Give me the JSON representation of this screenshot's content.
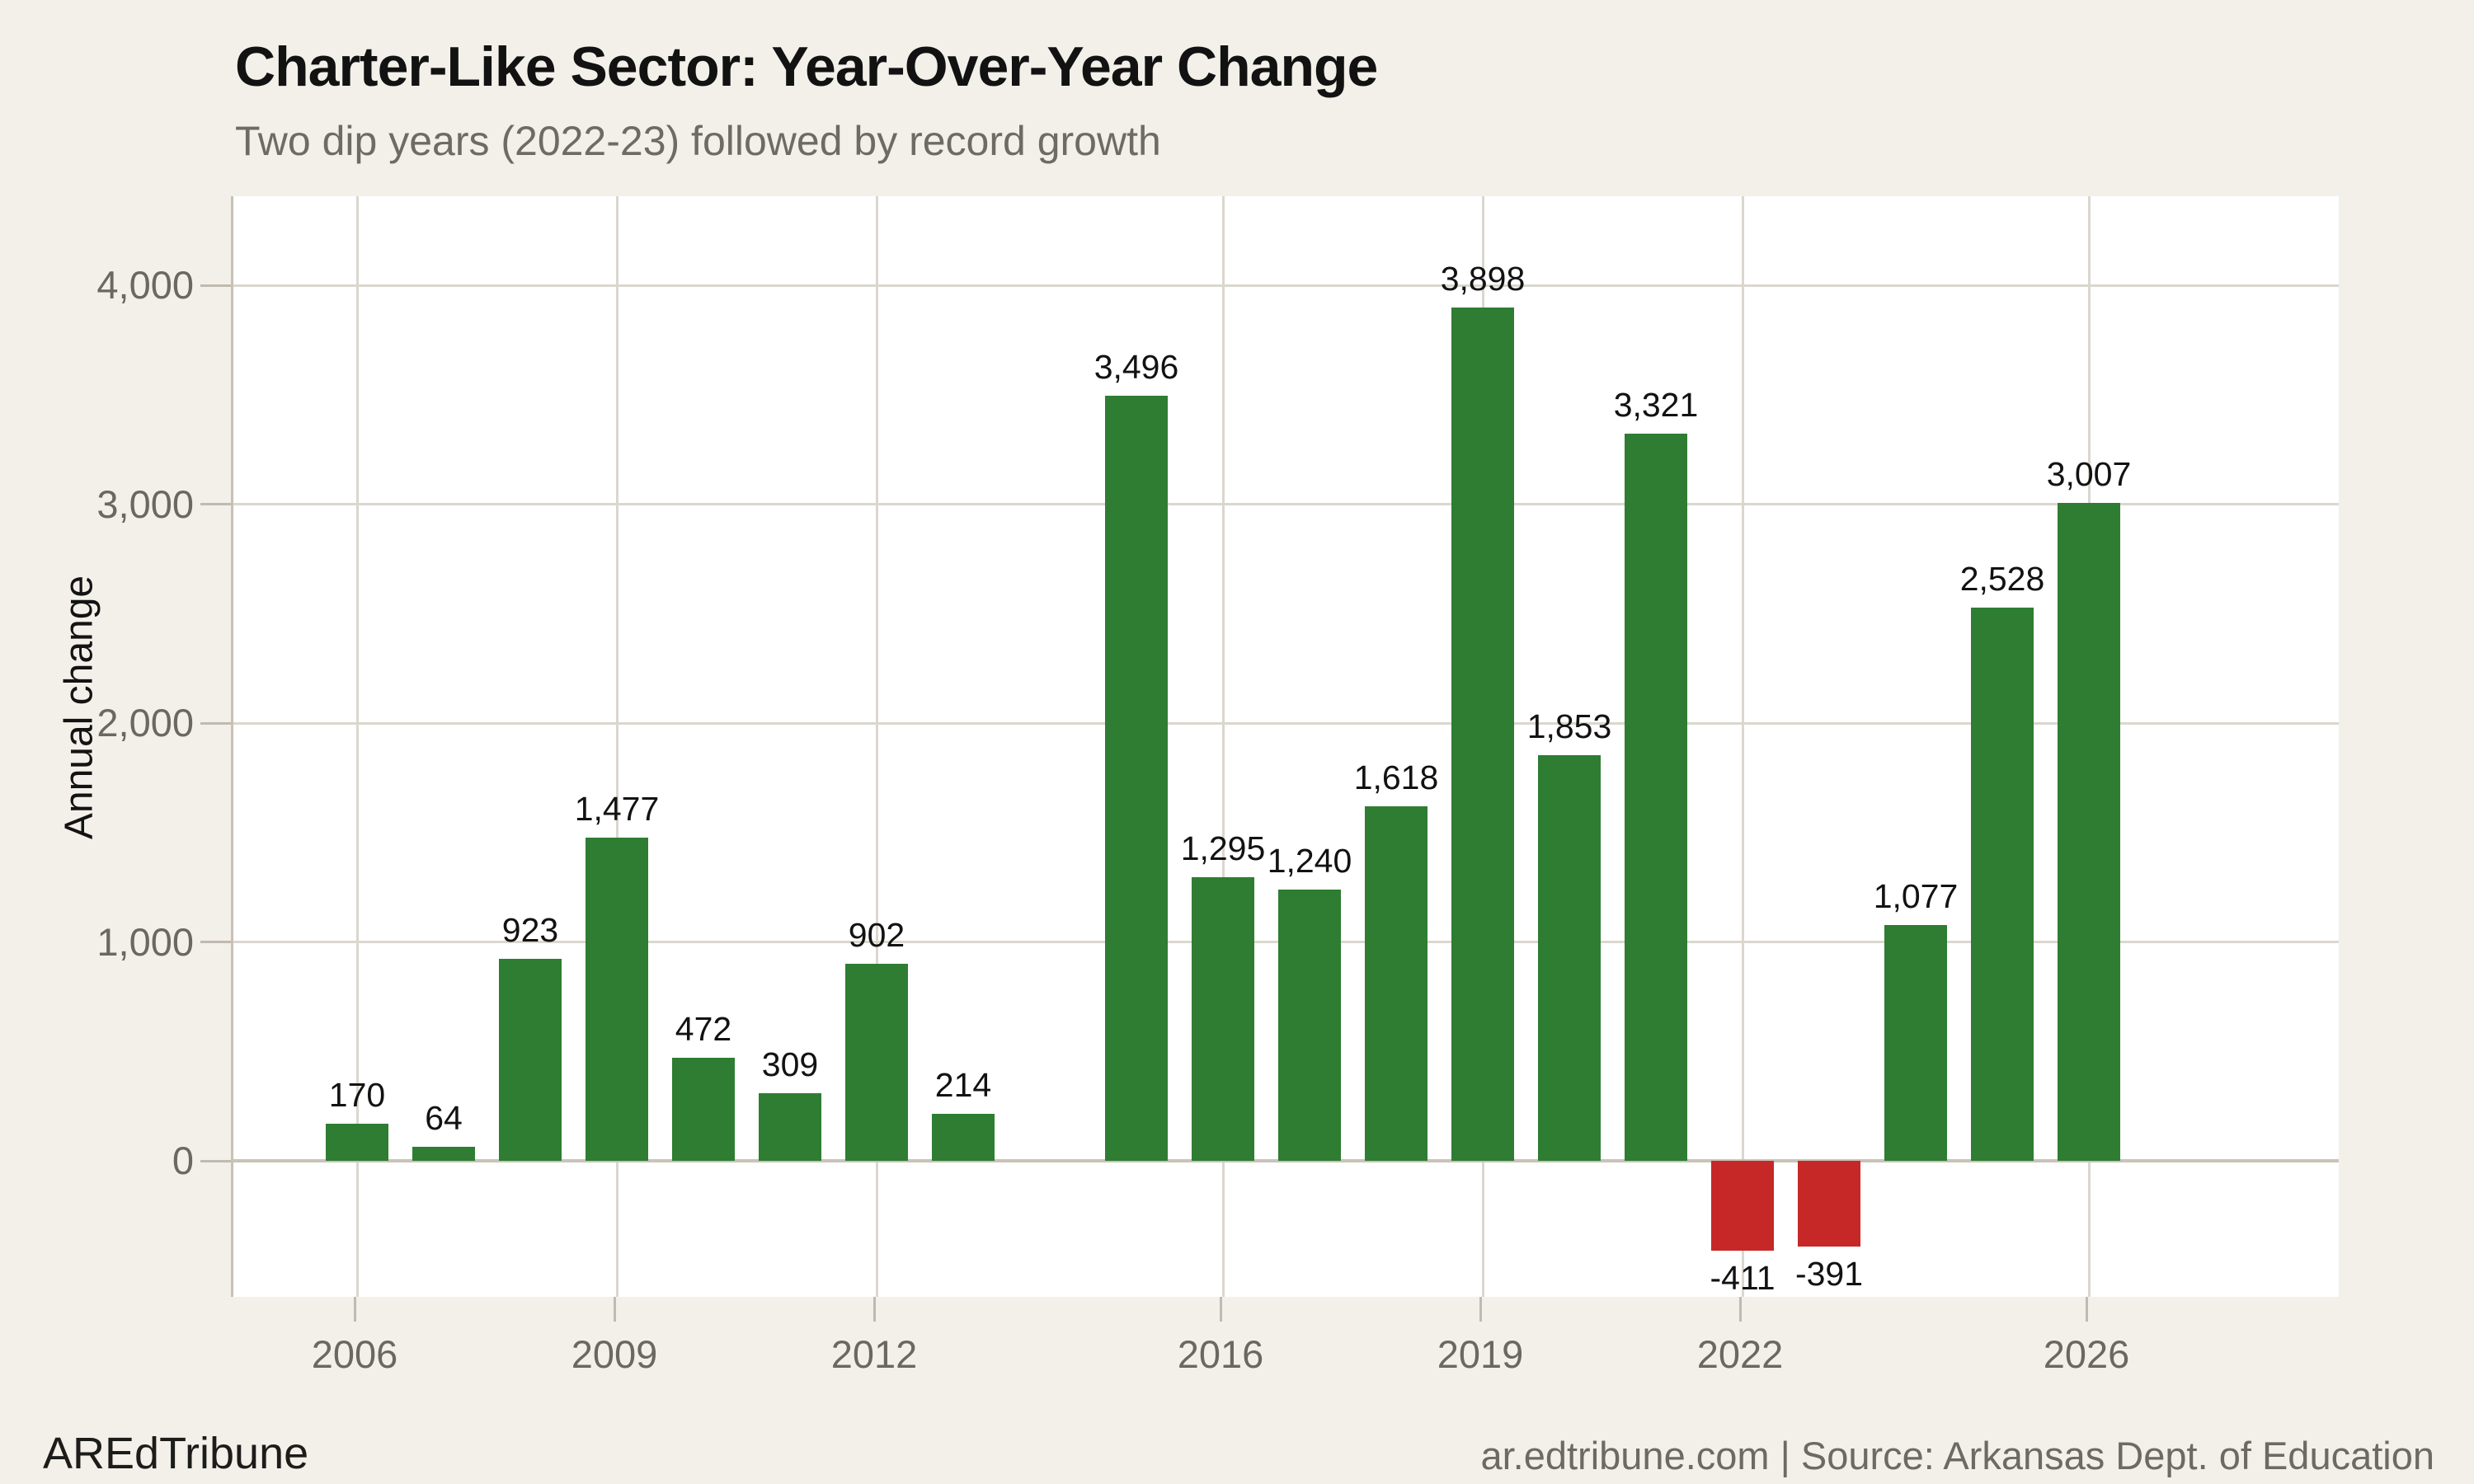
{
  "header": {
    "title": "Charter-Like Sector: Year-Over-Year Change",
    "subtitle": "Two dip years (2022-23) followed by record growth"
  },
  "footer": {
    "brand": "AREdTribune",
    "source": "ar.edtribune.com | Source: Arkansas Dept. of Education"
  },
  "colors": {
    "background": "#f3f0ea",
    "panel": "#ffffff",
    "positive_bar": "#2e7d32",
    "negative_bar": "#c62828",
    "gridline": "#dbd7ce",
    "zero_axis_line": "#c9c3b8",
    "tick_text": "#6b6761",
    "subtitle_text": "#6e6b66",
    "title_text": "#121212"
  },
  "chart_data": {
    "type": "bar",
    "title": "Charter-Like Sector: Year-Over-Year Change",
    "subtitle": "Two dip years (2022-23) followed by record growth",
    "xlabel": "",
    "ylabel": "Annual change",
    "categories": [
      2006,
      2007,
      2008,
      2009,
      2010,
      2011,
      2012,
      2013,
      2014,
      2015,
      2016,
      2017,
      2018,
      2019,
      2020,
      2021,
      2022,
      2023,
      2024,
      2025,
      2026
    ],
    "values": [
      170,
      64,
      923,
      1477,
      472,
      309,
      902,
      214,
      null,
      3496,
      1295,
      1240,
      1618,
      3898,
      1853,
      3321,
      -411,
      -391,
      1077,
      2528,
      3007
    ],
    "value_labels": [
      "170",
      "64",
      "923",
      "1,477",
      "472",
      "309",
      "902",
      "214",
      null,
      "3,496",
      "1,295",
      "1,240",
      "1,618",
      "3,898",
      "1,853",
      "3,321",
      "-411",
      "-391",
      "1,077",
      "2,528",
      "3,007"
    ],
    "x_ticks": [
      2006,
      2009,
      2012,
      2016,
      2019,
      2022,
      2026
    ],
    "y_ticks": [
      {
        "value": 0,
        "label": "0"
      },
      {
        "value": 1000,
        "label": "1,000"
      },
      {
        "value": 2000,
        "label": "2,000"
      },
      {
        "value": 3000,
        "label": "3,000"
      },
      {
        "value": 4000,
        "label": "4,000"
      }
    ],
    "ylim": [
      -620,
      4420
    ],
    "grid": true,
    "legend": false,
    "positive_color": "#2e7d32",
    "negative_color": "#c62828"
  }
}
